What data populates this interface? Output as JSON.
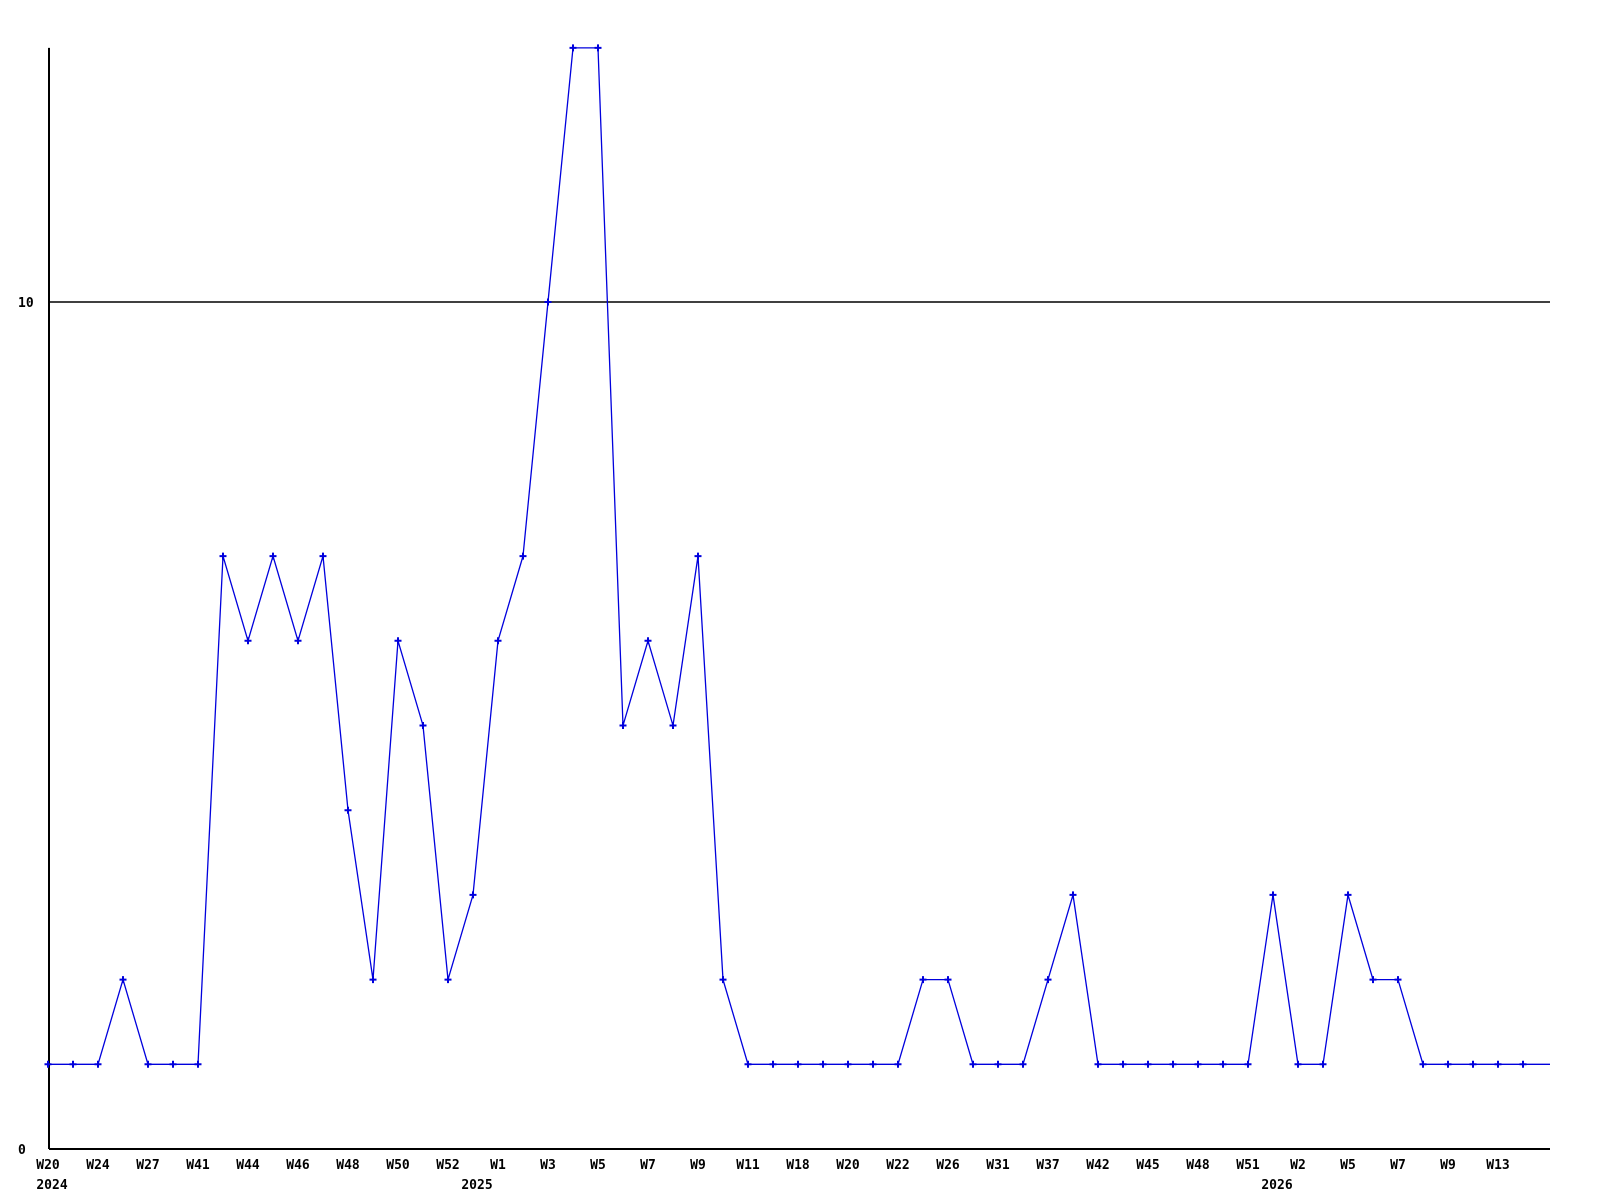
{
  "chart_data": {
    "type": "line",
    "title": "",
    "xlabel": "",
    "ylabel": "",
    "legend": "none",
    "grid": "single horizontal gridline at y=10",
    "background_color": "#ffffff",
    "axis_color": "#000000",
    "text_color": "#000000",
    "line_color": "#0000dd",
    "marker": "plus",
    "ylim": [
      0,
      13.0
    ],
    "y_axis_ticks": [
      {
        "label": "0",
        "value": 0
      },
      {
        "label": "10",
        "value": 10
      }
    ],
    "gridline_value": 10,
    "label_every_n_points": 2,
    "x_tick_labels": [
      "W20",
      "W24",
      "W27",
      "W41",
      "W44",
      "W46",
      "W48",
      "W50",
      "W52",
      "W1",
      "W3",
      "W5",
      "W7",
      "W9",
      "W11",
      "W18",
      "W20",
      "W22",
      "W26",
      "W31",
      "W37",
      "W42",
      "W45",
      "W48",
      "W51",
      "W2",
      "W5",
      "W7",
      "W9",
      "W13"
    ],
    "year_markers": [
      {
        "label": "2024",
        "point_index": 0
      },
      {
        "label": "2025",
        "point_index": 17
      },
      {
        "label": "2026",
        "point_index": 49
      }
    ],
    "values": [
      1,
      1,
      1,
      2,
      1,
      1,
      1,
      7,
      6,
      7,
      6,
      7,
      4,
      2,
      6,
      5,
      2,
      3,
      6,
      7,
      10,
      13,
      13,
      5,
      6,
      5,
      7,
      2,
      1,
      1,
      1,
      1,
      1,
      1,
      1,
      2,
      2,
      1,
      1,
      1,
      2,
      3,
      1,
      1,
      1,
      1,
      1,
      1,
      1,
      3,
      1,
      1,
      3,
      2,
      2,
      1,
      1,
      1,
      1,
      1
    ]
  }
}
